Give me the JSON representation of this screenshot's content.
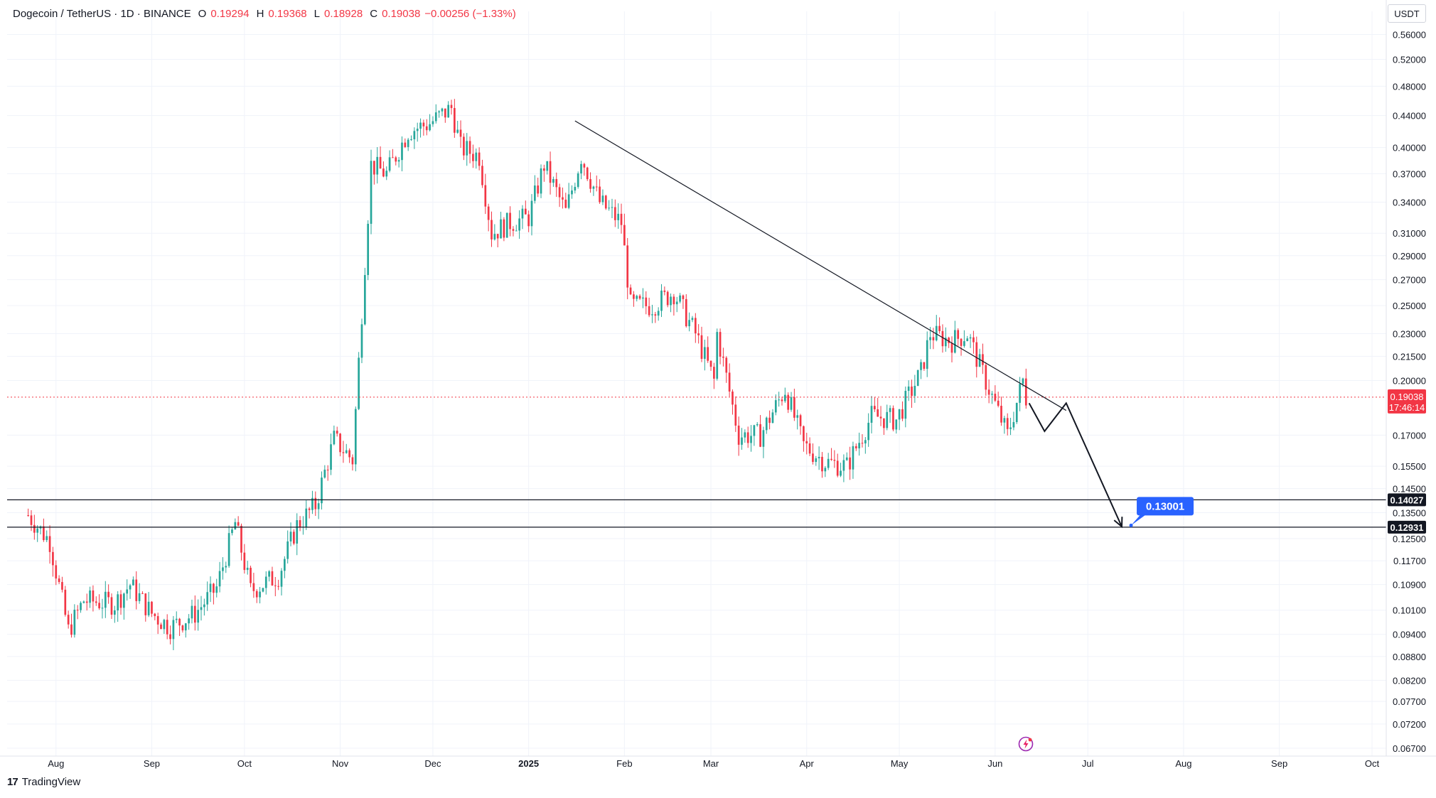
{
  "header": {
    "symbol_title": "Dogecoin / TetherUS · 1D · BINANCE",
    "open_label": "O",
    "open_value": "0.19294",
    "high_label": "H",
    "high_value": "0.19368",
    "low_label": "L",
    "low_value": "0.18928",
    "close_label": "C",
    "close_value": "0.19038",
    "change_value": "−0.00256 (−1.33%)"
  },
  "currency": "USDT",
  "brand": {
    "logo": "17",
    "name": "TradingView"
  },
  "colors": {
    "up": "#26a69a",
    "down": "#f23645",
    "grid": "#f0f3fa",
    "axis_text": "#131722",
    "callout": "#2962ff"
  },
  "chart_data": {
    "type": "candlestick",
    "title": "Dogecoin / TetherUS · 1D · BINANCE",
    "y_scale": "log",
    "ylim": [
      0.066,
      0.575
    ],
    "grid": true,
    "y_ticks": [
      "0.56000",
      "0.52000",
      "0.48000",
      "0.44000",
      "0.40000",
      "0.37000",
      "0.34000",
      "0.31000",
      "0.29000",
      "0.27000",
      "0.25000",
      "0.23000",
      "0.21500",
      "0.20000",
      "0.17000",
      "0.15500",
      "0.14500",
      "0.13500",
      "0.12500",
      "0.11700",
      "0.10900",
      "0.10100",
      "0.09400",
      "0.08800",
      "0.08200",
      "0.07700",
      "0.07200",
      "0.06700"
    ],
    "x_ticks": [
      {
        "label": "Aug",
        "date": "2024-08-01",
        "bold": false
      },
      {
        "label": "Sep",
        "date": "2024-09-01",
        "bold": false
      },
      {
        "label": "Oct",
        "date": "2024-10-01",
        "bold": false
      },
      {
        "label": "Nov",
        "date": "2024-11-01",
        "bold": false
      },
      {
        "label": "Dec",
        "date": "2024-12-01",
        "bold": false
      },
      {
        "label": "2025",
        "date": "2025-01-01",
        "bold": true
      },
      {
        "label": "Feb",
        "date": "2025-02-01",
        "bold": false
      },
      {
        "label": "Mar",
        "date": "2025-03-01",
        "bold": false
      },
      {
        "label": "Apr",
        "date": "2025-04-01",
        "bold": false
      },
      {
        "label": "May",
        "date": "2025-05-01",
        "bold": false
      },
      {
        "label": "Jun",
        "date": "2025-06-01",
        "bold": false
      },
      {
        "label": "Jul",
        "date": "2025-07-01",
        "bold": false
      },
      {
        "label": "Aug",
        "date": "2025-08-01",
        "bold": false
      },
      {
        "label": "Sep",
        "date": "2025-09-01",
        "bold": false
      },
      {
        "label": "Oct",
        "date": "2025-10-01",
        "bold": false
      }
    ],
    "price_anchors": [
      [
        "2024-07-23",
        0.134
      ],
      [
        "2024-07-30",
        0.124
      ],
      [
        "2024-08-05",
        0.095
      ],
      [
        "2024-08-10",
        0.104
      ],
      [
        "2024-08-20",
        0.103
      ],
      [
        "2024-08-25",
        0.109
      ],
      [
        "2024-09-01",
        0.1
      ],
      [
        "2024-09-07",
        0.096
      ],
      [
        "2024-09-15",
        0.1
      ],
      [
        "2024-09-22",
        0.108
      ],
      [
        "2024-09-28",
        0.131
      ],
      [
        "2024-10-03",
        0.107
      ],
      [
        "2024-10-12",
        0.112
      ],
      [
        "2024-10-18",
        0.13
      ],
      [
        "2024-10-24",
        0.138
      ],
      [
        "2024-10-30",
        0.168
      ],
      [
        "2024-11-05",
        0.158
      ],
      [
        "2024-11-11",
        0.38
      ],
      [
        "2024-11-16",
        0.37
      ],
      [
        "2024-11-23",
        0.42
      ],
      [
        "2024-11-30",
        0.43
      ],
      [
        "2024-12-07",
        0.45
      ],
      [
        "2024-12-10",
        0.4
      ],
      [
        "2024-12-16",
        0.39
      ],
      [
        "2024-12-20",
        0.31
      ],
      [
        "2024-12-26",
        0.32
      ],
      [
        "2025-01-01",
        0.325
      ],
      [
        "2025-01-06",
        0.38
      ],
      [
        "2025-01-13",
        0.33
      ],
      [
        "2025-01-18",
        0.39
      ],
      [
        "2025-01-24",
        0.34
      ],
      [
        "2025-01-31",
        0.32
      ],
      [
        "2025-02-03",
        0.25
      ],
      [
        "2025-02-10",
        0.25
      ],
      [
        "2025-02-17",
        0.26
      ],
      [
        "2025-02-24",
        0.23
      ],
      [
        "2025-03-02",
        0.2
      ],
      [
        "2025-03-03",
        0.23
      ],
      [
        "2025-03-10",
        0.17
      ],
      [
        "2025-03-17",
        0.17
      ],
      [
        "2025-03-25",
        0.195
      ],
      [
        "2025-03-31",
        0.165
      ],
      [
        "2025-04-07",
        0.157
      ],
      [
        "2025-04-14",
        0.155
      ],
      [
        "2025-04-22",
        0.18
      ],
      [
        "2025-04-30",
        0.178
      ],
      [
        "2025-05-08",
        0.205
      ],
      [
        "2025-05-11",
        0.23
      ],
      [
        "2025-05-18",
        0.225
      ],
      [
        "2025-05-23",
        0.23
      ],
      [
        "2025-05-30",
        0.195
      ],
      [
        "2025-06-05",
        0.17
      ],
      [
        "2025-06-10",
        0.2
      ],
      [
        "2025-06-11",
        0.19
      ]
    ],
    "last_price": 0.19038,
    "last_price_label": "0.19038",
    "countdown_label": "17:46:14",
    "horizontal_levels": [
      {
        "price": 0.14027,
        "label": "0.14027"
      },
      {
        "price": 0.12931,
        "label": "0.12931"
      }
    ],
    "trendline": [
      [
        "2025-01-16",
        0.433
      ],
      [
        "2025-06-24",
        0.183
      ]
    ],
    "projection_path": [
      [
        "2025-06-12",
        0.187
      ],
      [
        "2025-06-17",
        0.172
      ],
      [
        "2025-06-24",
        0.187
      ],
      [
        "2025-07-12",
        0.1295
      ]
    ],
    "callout": {
      "label": "0.13001",
      "date": "2025-07-15",
      "price": 0.13
    }
  }
}
